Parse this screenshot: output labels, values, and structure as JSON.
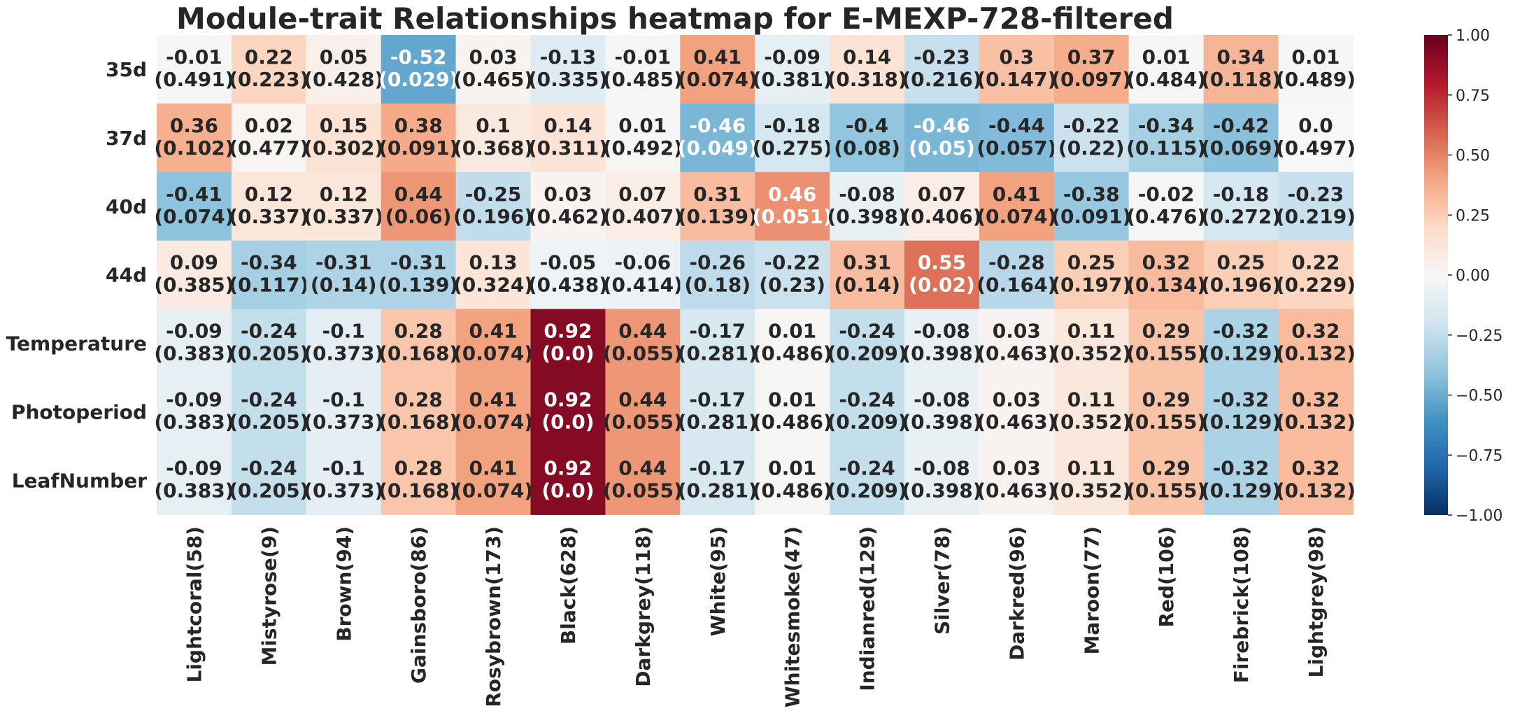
{
  "chart_data": {
    "type": "heatmap",
    "title": "Module-trait Relationships heatmap for E-MEXP-728-filtered",
    "rows": [
      "35d",
      "37d",
      "40d",
      "44d",
      "Temperature",
      "Photoperiod",
      "LeafNumber"
    ],
    "columns": [
      "Lightcoral(58)",
      "Mistyrose(9)",
      "Brown(94)",
      "Gainsboro(86)",
      "Rosybrown(173)",
      "Black(628)",
      "Darkgrey(118)",
      "White(95)",
      "Whitesmoke(47)",
      "Indianred(129)",
      "Silver(78)",
      "Darkred(96)",
      "Maroon(77)",
      "Red(106)",
      "Firebrick(108)",
      "Lightgrey(98)"
    ],
    "values": [
      [
        -0.01,
        0.22,
        0.05,
        -0.52,
        0.03,
        -0.13,
        -0.01,
        0.41,
        -0.09,
        0.14,
        -0.23,
        0.3,
        0.37,
        0.01,
        0.34,
        0.01
      ],
      [
        0.36,
        0.02,
        0.15,
        0.38,
        0.1,
        0.14,
        0.01,
        -0.46,
        -0.18,
        -0.4,
        -0.46,
        -0.44,
        -0.22,
        -0.34,
        -0.42,
        0.0
      ],
      [
        -0.41,
        0.12,
        0.12,
        0.44,
        -0.25,
        0.03,
        0.07,
        0.31,
        0.46,
        -0.08,
        0.07,
        0.41,
        -0.38,
        -0.02,
        -0.18,
        -0.23
      ],
      [
        0.09,
        -0.34,
        -0.31,
        -0.31,
        0.13,
        -0.05,
        -0.06,
        -0.26,
        -0.22,
        0.31,
        0.55,
        -0.28,
        0.25,
        0.32,
        0.25,
        0.22
      ],
      [
        -0.09,
        -0.24,
        -0.1,
        0.28,
        0.41,
        0.92,
        0.44,
        -0.17,
        0.01,
        -0.24,
        -0.08,
        0.03,
        0.11,
        0.29,
        -0.32,
        0.32
      ],
      [
        -0.09,
        -0.24,
        -0.1,
        0.28,
        0.41,
        0.92,
        0.44,
        -0.17,
        0.01,
        -0.24,
        -0.08,
        0.03,
        0.11,
        0.29,
        -0.32,
        0.32
      ],
      [
        -0.09,
        -0.24,
        -0.1,
        0.28,
        0.41,
        0.92,
        0.44,
        -0.17,
        0.01,
        -0.24,
        -0.08,
        0.03,
        0.11,
        0.29,
        -0.32,
        0.32
      ]
    ],
    "value_labels": [
      [
        "-0.01",
        "0.22",
        "0.05",
        "-0.52",
        "0.03",
        "-0.13",
        "-0.01",
        "0.41",
        "-0.09",
        "0.14",
        "-0.23",
        "0.3",
        "0.37",
        "0.01",
        "0.34",
        "0.01"
      ],
      [
        "0.36",
        "0.02",
        "0.15",
        "0.38",
        "0.1",
        "0.14",
        "0.01",
        "-0.46",
        "-0.18",
        "-0.4",
        "-0.46",
        "-0.44",
        "-0.22",
        "-0.34",
        "-0.42",
        "0.0"
      ],
      [
        "-0.41",
        "0.12",
        "0.12",
        "0.44",
        "-0.25",
        "0.03",
        "0.07",
        "0.31",
        "0.46",
        "-0.08",
        "0.07",
        "0.41",
        "-0.38",
        "-0.02",
        "-0.18",
        "-0.23"
      ],
      [
        "0.09",
        "-0.34",
        "-0.31",
        "-0.31",
        "0.13",
        "-0.05",
        "-0.06",
        "-0.26",
        "-0.22",
        "0.31",
        "0.55",
        "-0.28",
        "0.25",
        "0.32",
        "0.25",
        "0.22"
      ],
      [
        "-0.09",
        "-0.24",
        "-0.1",
        "0.28",
        "0.41",
        "0.92",
        "0.44",
        "-0.17",
        "0.01",
        "-0.24",
        "-0.08",
        "0.03",
        "0.11",
        "0.29",
        "-0.32",
        "0.32"
      ],
      [
        "-0.09",
        "-0.24",
        "-0.1",
        "0.28",
        "0.41",
        "0.92",
        "0.44",
        "-0.17",
        "0.01",
        "-0.24",
        "-0.08",
        "0.03",
        "0.11",
        "0.29",
        "-0.32",
        "0.32"
      ],
      [
        "-0.09",
        "-0.24",
        "-0.1",
        "0.28",
        "0.41",
        "0.92",
        "0.44",
        "-0.17",
        "0.01",
        "-0.24",
        "-0.08",
        "0.03",
        "0.11",
        "0.29",
        "-0.32",
        "0.32"
      ]
    ],
    "p_values": [
      [
        "(0.491)",
        "(0.223)",
        "(0.428)",
        "(0.029)",
        "(0.465)",
        "(0.335)",
        "(0.485)",
        "(0.074)",
        "(0.381)",
        "(0.318)",
        "(0.216)",
        "(0.147)",
        "(0.097)",
        "(0.484)",
        "(0.118)",
        "(0.489)"
      ],
      [
        "(0.102)",
        "(0.477)",
        "(0.302)",
        "(0.091)",
        "(0.368)",
        "(0.311)",
        "(0.492)",
        "(0.049)",
        "(0.275)",
        "(0.08)",
        "(0.05)",
        "(0.057)",
        "(0.22)",
        "(0.115)",
        "(0.069)",
        "(0.497)"
      ],
      [
        "(0.074)",
        "(0.337)",
        "(0.337)",
        "(0.06)",
        "(0.196)",
        "(0.462)",
        "(0.407)",
        "(0.139)",
        "(0.051)",
        "(0.398)",
        "(0.406)",
        "(0.074)",
        "(0.091)",
        "(0.476)",
        "(0.272)",
        "(0.219)"
      ],
      [
        "(0.385)",
        "(0.117)",
        "(0.14)",
        "(0.139)",
        "(0.324)",
        "(0.438)",
        "(0.414)",
        "(0.18)",
        "(0.23)",
        "(0.14)",
        "(0.02)",
        "(0.164)",
        "(0.197)",
        "(0.134)",
        "(0.196)",
        "(0.229)"
      ],
      [
        "(0.383)",
        "(0.205)",
        "(0.373)",
        "(0.168)",
        "(0.074)",
        "(0.0)",
        "(0.055)",
        "(0.281)",
        "(0.486)",
        "(0.209)",
        "(0.398)",
        "(0.463)",
        "(0.352)",
        "(0.155)",
        "(0.129)",
        "(0.132)"
      ],
      [
        "(0.383)",
        "(0.205)",
        "(0.373)",
        "(0.168)",
        "(0.074)",
        "(0.0)",
        "(0.055)",
        "(0.281)",
        "(0.486)",
        "(0.209)",
        "(0.398)",
        "(0.463)",
        "(0.352)",
        "(0.155)",
        "(0.129)",
        "(0.132)"
      ],
      [
        "(0.383)",
        "(0.205)",
        "(0.373)",
        "(0.168)",
        "(0.074)",
        "(0.0)",
        "(0.055)",
        "(0.281)",
        "(0.486)",
        "(0.209)",
        "(0.398)",
        "(0.463)",
        "(0.352)",
        "(0.155)",
        "(0.129)",
        "(0.132)"
      ]
    ],
    "color_scale": {
      "name": "RdBu_r",
      "vmin": -1.0,
      "vmax": 1.0,
      "ticks": [
        1.0,
        0.75,
        0.5,
        0.25,
        0.0,
        -0.25,
        -0.5,
        -0.75,
        -1.0
      ],
      "tick_labels": [
        "1.00",
        "0.75",
        "0.50",
        "0.25",
        "0.00",
        "−0.25",
        "−0.50",
        "−0.75",
        "−1.00"
      ],
      "stops": [
        "#053061",
        "#2166ac",
        "#4393c3",
        "#92c5de",
        "#d1e5f0",
        "#f7f7f7",
        "#fddbc7",
        "#f4a582",
        "#d6604d",
        "#b2182b",
        "#67001f"
      ]
    },
    "colorbar_placement": "right",
    "grid": false
  }
}
